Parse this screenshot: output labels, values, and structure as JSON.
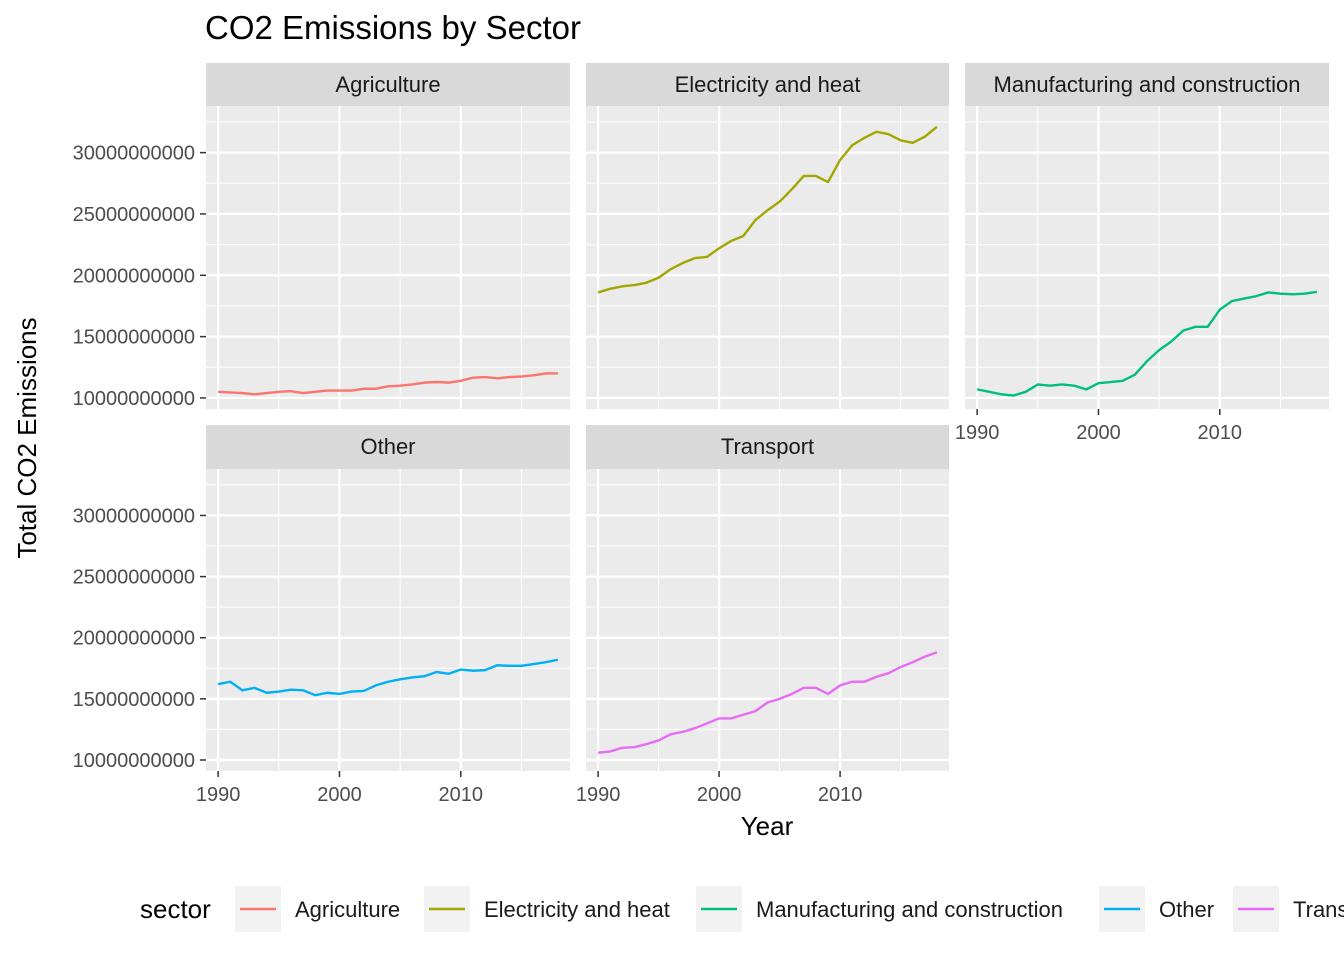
{
  "chart_data": {
    "type": "line",
    "title": "CO2 Emissions by Sector",
    "xlabel": "Year",
    "ylabel": "Total CO2 Emissions",
    "x": [
      1990,
      1991,
      1992,
      1993,
      1994,
      1995,
      1996,
      1997,
      1998,
      1999,
      2000,
      2001,
      2002,
      2003,
      2004,
      2005,
      2006,
      2007,
      2008,
      2009,
      2010,
      2011,
      2012,
      2013,
      2014,
      2015,
      2016,
      2017,
      2018
    ],
    "xlim": [
      1989,
      2019
    ],
    "ylim": [
      9100000000,
      33800000000
    ],
    "x_ticks": [
      1990,
      2000,
      2010
    ],
    "y_ticks": [
      10000000000,
      15000000000,
      20000000000,
      25000000000,
      30000000000
    ],
    "y_tick_labels": [
      "10000000000",
      "15000000000",
      "20000000000",
      "25000000000",
      "30000000000"
    ],
    "grid": true,
    "legend_title": "sector",
    "legend_position": "bottom",
    "series": [
      {
        "name": "Agriculture",
        "color": "#F8766D",
        "values": [
          10500000000,
          10450000000,
          10400000000,
          10300000000,
          10400000000,
          10500000000,
          10550000000,
          10400000000,
          10500000000,
          10600000000,
          10600000000,
          10600000000,
          10750000000,
          10750000000,
          10950000000,
          11000000000,
          11100000000,
          11250000000,
          11300000000,
          11250000000,
          11400000000,
          11650000000,
          11700000000,
          11600000000,
          11700000000,
          11750000000,
          11850000000,
          12000000000,
          12000000000
        ]
      },
      {
        "name": "Electricity and heat",
        "color": "#A3A500",
        "values": [
          18600000000,
          18900000000,
          19100000000,
          19200000000,
          19400000000,
          19800000000,
          20500000000,
          21000000000,
          21400000000,
          21500000000,
          22200000000,
          22800000000,
          23200000000,
          24500000000,
          25300000000,
          26000000000,
          27000000000,
          28100000000,
          28100000000,
          27600000000,
          29400000000,
          30600000000,
          31200000000,
          31700000000,
          31500000000,
          31000000000,
          30800000000,
          31300000000,
          32100000000
        ]
      },
      {
        "name": "Manufacturing and construction",
        "color": "#00BF7D",
        "values": [
          10700000000,
          10500000000,
          10300000000,
          10200000000,
          10500000000,
          11100000000,
          11000000000,
          11100000000,
          11000000000,
          10700000000,
          11200000000,
          11300000000,
          11400000000,
          11900000000,
          13000000000,
          13900000000,
          14600000000,
          15500000000,
          15800000000,
          15800000000,
          17200000000,
          17900000000,
          18100000000,
          18300000000,
          18600000000,
          18500000000,
          18450000000,
          18500000000,
          18650000000
        ]
      },
      {
        "name": "Other",
        "color": "#00B0F6",
        "values": [
          16200000000,
          16400000000,
          15700000000,
          15900000000,
          15500000000,
          15600000000,
          15750000000,
          15700000000,
          15300000000,
          15500000000,
          15400000000,
          15600000000,
          15650000000,
          16100000000,
          16400000000,
          16600000000,
          16750000000,
          16850000000,
          17200000000,
          17050000000,
          17400000000,
          17300000000,
          17350000000,
          17750000000,
          17700000000,
          17700000000,
          17850000000,
          18000000000,
          18200000000
        ]
      },
      {
        "name": "Transport",
        "color": "#E76BF3",
        "values": [
          10600000000,
          10700000000,
          11000000000,
          11050000000,
          11300000000,
          11600000000,
          12100000000,
          12300000000,
          12600000000,
          13000000000,
          13400000000,
          13400000000,
          13700000000,
          14000000000,
          14700000000,
          15000000000,
          15400000000,
          15900000000,
          15900000000,
          15400000000,
          16100000000,
          16400000000,
          16400000000,
          16800000000,
          17100000000,
          17600000000,
          18000000000,
          18450000000,
          18800000000
        ]
      }
    ]
  }
}
